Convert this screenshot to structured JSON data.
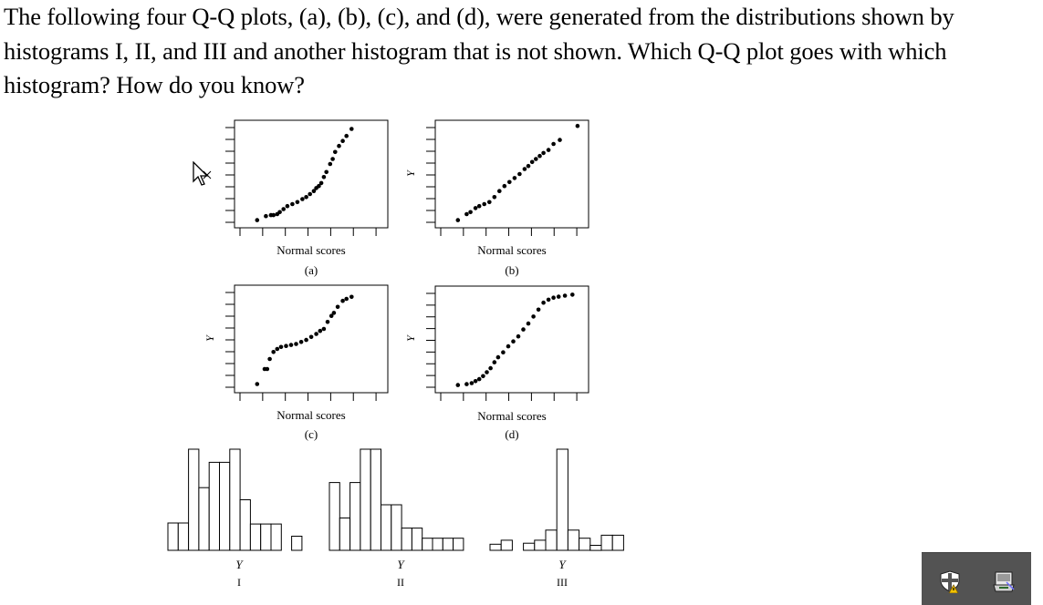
{
  "question": "The following four Q-Q plots, (a), (b), (c), and (d), were generated from the distributions shown by histograms I, II, and III and another histogram that is not shown. Which Q-Q plot goes with which histogram? How do you know?",
  "qq_xlabel": "Normal scores",
  "qq_ylabel": "Y",
  "qq_plots": [
    {
      "label": "(a)"
    },
    {
      "label": "(b)"
    },
    {
      "label": "(c)"
    },
    {
      "label": "(d)"
    }
  ],
  "histograms": [
    {
      "label": "I",
      "xlabel": "Y"
    },
    {
      "label": "II",
      "xlabel": "Y"
    },
    {
      "label": "III",
      "xlabel": "Y"
    }
  ],
  "chart_data": [
    {
      "type": "scatter",
      "title": "(a)",
      "xlabel": "Normal scores",
      "ylabel": "",
      "points": [
        [
          0.02,
          0.04
        ],
        [
          0.09,
          0.08
        ],
        [
          0.13,
          0.09
        ],
        [
          0.15,
          0.09
        ],
        [
          0.18,
          0.1
        ],
        [
          0.2,
          0.12
        ],
        [
          0.23,
          0.15
        ],
        [
          0.26,
          0.18
        ],
        [
          0.3,
          0.2
        ],
        [
          0.34,
          0.22
        ],
        [
          0.38,
          0.25
        ],
        [
          0.41,
          0.27
        ],
        [
          0.44,
          0.3
        ],
        [
          0.47,
          0.33
        ],
        [
          0.49,
          0.36
        ],
        [
          0.51,
          0.38
        ],
        [
          0.53,
          0.41
        ],
        [
          0.55,
          0.47
        ],
        [
          0.57,
          0.52
        ],
        [
          0.6,
          0.6
        ],
        [
          0.62,
          0.65
        ],
        [
          0.64,
          0.72
        ],
        [
          0.67,
          0.78
        ],
        [
          0.7,
          0.83
        ],
        [
          0.73,
          0.88
        ],
        [
          0.77,
          0.95
        ]
      ]
    },
    {
      "type": "scatter",
      "title": "(b)",
      "xlabel": "Normal scores",
      "ylabel": "Y",
      "points": [
        [
          0.02,
          0.04
        ],
        [
          0.09,
          0.1
        ],
        [
          0.12,
          0.12
        ],
        [
          0.16,
          0.16
        ],
        [
          0.19,
          0.18
        ],
        [
          0.23,
          0.2
        ],
        [
          0.27,
          0.22
        ],
        [
          0.31,
          0.27
        ],
        [
          0.35,
          0.33
        ],
        [
          0.39,
          0.38
        ],
        [
          0.43,
          0.42
        ],
        [
          0.47,
          0.46
        ],
        [
          0.51,
          0.5
        ],
        [
          0.55,
          0.55
        ],
        [
          0.58,
          0.58
        ],
        [
          0.61,
          0.62
        ],
        [
          0.64,
          0.65
        ],
        [
          0.67,
          0.68
        ],
        [
          0.7,
          0.71
        ],
        [
          0.74,
          0.74
        ],
        [
          0.78,
          0.8
        ],
        [
          0.83,
          0.84
        ],
        [
          0.97,
          0.98
        ]
      ]
    },
    {
      "type": "scatter",
      "title": "(c)",
      "xlabel": "Normal scores",
      "ylabel": "Y",
      "points": [
        [
          0.02,
          0.05
        ],
        [
          0.08,
          0.2
        ],
        [
          0.1,
          0.2
        ],
        [
          0.12,
          0.3
        ],
        [
          0.15,
          0.37
        ],
        [
          0.18,
          0.4
        ],
        [
          0.21,
          0.42
        ],
        [
          0.25,
          0.43
        ],
        [
          0.29,
          0.44
        ],
        [
          0.33,
          0.45
        ],
        [
          0.37,
          0.47
        ],
        [
          0.41,
          0.49
        ],
        [
          0.45,
          0.52
        ],
        [
          0.49,
          0.55
        ],
        [
          0.52,
          0.58
        ],
        [
          0.55,
          0.6
        ],
        [
          0.58,
          0.67
        ],
        [
          0.61,
          0.73
        ],
        [
          0.63,
          0.76
        ],
        [
          0.66,
          0.82
        ],
        [
          0.7,
          0.88
        ],
        [
          0.73,
          0.9
        ],
        [
          0.77,
          0.92
        ]
      ]
    },
    {
      "type": "scatter",
      "title": "(d)",
      "xlabel": "Normal scores",
      "ylabel": "Y",
      "points": [
        [
          0.02,
          0.04
        ],
        [
          0.09,
          0.05
        ],
        [
          0.13,
          0.06
        ],
        [
          0.16,
          0.08
        ],
        [
          0.19,
          0.1
        ],
        [
          0.22,
          0.13
        ],
        [
          0.25,
          0.17
        ],
        [
          0.28,
          0.21
        ],
        [
          0.31,
          0.27
        ],
        [
          0.34,
          0.32
        ],
        [
          0.38,
          0.37
        ],
        [
          0.42,
          0.43
        ],
        [
          0.46,
          0.48
        ],
        [
          0.5,
          0.53
        ],
        [
          0.54,
          0.6
        ],
        [
          0.58,
          0.66
        ],
        [
          0.62,
          0.73
        ],
        [
          0.66,
          0.8
        ],
        [
          0.7,
          0.87
        ],
        [
          0.74,
          0.9
        ],
        [
          0.78,
          0.92
        ],
        [
          0.82,
          0.93
        ],
        [
          0.87,
          0.94
        ],
        [
          0.93,
          0.95
        ]
      ]
    },
    {
      "type": "bar",
      "title": "I",
      "xlabel": "Y",
      "values": [
        0.27,
        0.27,
        1.0,
        0.62,
        0.87,
        0.87,
        1.0,
        0.5,
        0.26,
        0.26,
        0.26,
        0,
        0.14
      ]
    },
    {
      "type": "bar",
      "title": "II",
      "xlabel": "Y",
      "values": [
        0.67,
        0.32,
        0.67,
        1.0,
        1.0,
        0.45,
        0.45,
        0.22,
        0.22,
        0.12,
        0.12,
        0.12,
        0.12
      ]
    },
    {
      "type": "bar",
      "title": "III",
      "xlabel": "Y",
      "values": [
        0.06,
        0.1,
        0,
        0.07,
        0.1,
        0.2,
        1.0,
        0.2,
        0.12,
        0.05,
        0.15,
        0.15
      ]
    }
  ]
}
